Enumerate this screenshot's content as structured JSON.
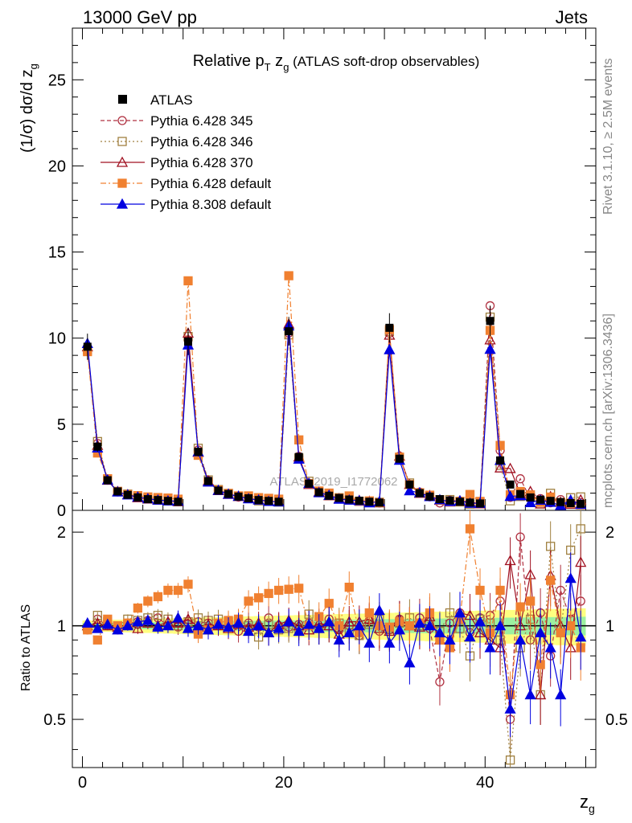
{
  "header": {
    "left": "13000 GeV pp",
    "right": "Jets"
  },
  "side_labels": {
    "rivet": "Rivet 3.1.10, ≥ 2.5M events",
    "mcplots": "mcplots.cern.ch [arXiv:1306.3436]"
  },
  "chart_data": {
    "type": "scatter",
    "title_main": "Relative p",
    "title_sub_T": "T",
    "title_mid": " z",
    "title_sub_g": "g",
    "title_tail": " (ATLAS soft-drop observables)",
    "watermark": "ATLAS_2019_I1772062",
    "xlabel": "z",
    "xlabel_sub": "g",
    "ylabel_main": "(1/σ) dσ/d z",
    "ylabel_sub": "g",
    "ylabel_ratio": "Ratio to ATLAS",
    "xlim": [
      -1,
      51
    ],
    "ylim_main": [
      0,
      28
    ],
    "ylim_ratio": [
      0.35,
      2.35
    ],
    "main_yticks": [
      "0",
      "5",
      "10",
      "15",
      "20",
      "25"
    ],
    "ratio_yticks": [
      "0.5",
      "1",
      "2"
    ],
    "xticks": [
      "0",
      "20",
      "40"
    ],
    "colors": {
      "atlas": "#000000",
      "p345": "#b03040",
      "p346": "#a08040",
      "p370": "#a01020",
      "p6def": "#f08030",
      "p8def": "#0000e0",
      "band_green": "#9cf0a0",
      "band_yellow": "#ffff80"
    },
    "legend": [
      {
        "key": "atlas",
        "label": "ATLAS"
      },
      {
        "key": "p345",
        "label": "Pythia 6.428 345"
      },
      {
        "key": "p346",
        "label": "Pythia 6.428 346"
      },
      {
        "key": "p370",
        "label": "Pythia 6.428 370"
      },
      {
        "key": "p6def",
        "label": "Pythia 6.428 default"
      },
      {
        "key": "p8def",
        "label": "Pythia 8.308 default"
      }
    ],
    "atlas_values": [
      9.5,
      3.7,
      1.75,
      1.1,
      0.9,
      0.75,
      0.65,
      0.6,
      0.55,
      0.5,
      9.8,
      3.4,
      1.7,
      1.15,
      0.95,
      0.8,
      0.7,
      0.6,
      0.55,
      0.5,
      10.4,
      3.1,
      1.55,
      1.05,
      0.85,
      0.72,
      0.63,
      0.56,
      0.5,
      0.45,
      10.6,
      3.0,
      1.5,
      1.0,
      0.8,
      0.65,
      0.57,
      0.5,
      0.45,
      0.4,
      11.0,
      2.9,
      1.5,
      0.95,
      0.75,
      0.62,
      0.55,
      0.48,
      0.42,
      0.38
    ],
    "ratios": {
      "p345": [
        0.97,
        1.05,
        1.0,
        0.97,
        1.02,
        1.03,
        1.04,
        1.06,
        1.0,
        0.99,
        1.01,
        1.03,
        1.02,
        1.0,
        1.01,
        0.96,
        1.02,
        0.99,
        1.06,
        1.0,
        0.99,
        1.01,
        1.02,
        0.98,
        1.05,
        0.97,
        1.0,
        0.93,
        1.04,
        0.96,
        0.97,
        1.05,
        1.0,
        1.06,
        0.98,
        0.66,
        1.02,
        1.1,
        0.95,
        1.06,
        1.08,
        1.2,
        0.5,
        1.93,
        0.9,
        1.1,
        0.8,
        1.3,
        1.05,
        1.2
      ],
      "p346": [
        0.98,
        1.08,
        1.03,
        1.0,
        1.05,
        1.04,
        1.06,
        1.08,
        1.05,
        1.0,
        1.03,
        1.06,
        1.04,
        1.05,
        1.03,
        1.04,
        1.0,
        0.92,
        1.01,
        0.97,
        0.98,
        0.98,
        1.09,
        0.98,
        1.0,
        1.02,
        0.95,
        0.93,
        1.01,
        1.05,
        0.98,
        1.02,
        1.06,
        1.0,
        1.03,
        0.96,
        1.1,
        0.98,
        0.8,
        1.05,
        1.02,
        0.9,
        0.37,
        0.85,
        1.05,
        0.6,
        1.8,
        0.95,
        1.75,
        2.05
      ],
      "p370": [
        1.0,
        1.02,
        1.0,
        0.99,
        1.01,
        0.98,
        1.02,
        1.0,
        1.03,
        1.02,
        1.05,
        0.99,
        1.01,
        1.0,
        0.98,
        1.01,
        0.99,
        1.02,
        0.95,
        1.01,
        1.04,
        1.0,
        0.97,
        1.02,
        1.0,
        0.94,
        1.03,
        1.03,
        1.05,
        0.98,
        0.96,
        1.05,
        1.0,
        0.99,
        1.07,
        0.9,
        0.86,
        1.1,
        1.08,
        0.95,
        0.9,
        0.85,
        1.62,
        1.0,
        1.46,
        0.6,
        1.45,
        1.0,
        0.85,
        1.6
      ],
      "p6def": [
        0.97,
        0.9,
        1.05,
        1.0,
        1.02,
        1.14,
        1.2,
        1.24,
        1.3,
        1.3,
        1.36,
        0.94,
        0.97,
        1.02,
        1.04,
        1.05,
        1.2,
        1.23,
        1.27,
        1.3,
        1.31,
        1.32,
        1.0,
        1.07,
        1.18,
        1.0,
        1.33,
        0.95,
        1.1,
        1.0,
        0.99,
        1.03,
        1.0,
        1.02,
        1.1,
        0.9,
        0.85,
        1.05,
        2.05,
        1.3,
        0.95,
        1.3,
        0.6,
        1.15,
        1.2,
        0.75,
        1.4,
        0.95,
        1.0,
        0.85
      ],
      "p8def": [
        1.02,
        0.98,
        1.01,
        0.97,
        1.0,
        1.03,
        1.04,
        0.99,
        1.0,
        1.06,
        0.98,
        1.0,
        0.97,
        1.01,
        0.99,
        1.02,
        0.96,
        1.0,
        0.95,
        0.98,
        1.03,
        0.96,
        1.01,
        0.98,
        1.03,
        0.9,
        0.95,
        1.0,
        0.88,
        1.12,
        0.88,
        0.97,
        0.76,
        1.02,
        1.0,
        0.95,
        0.9,
        1.1,
        0.92,
        1.03,
        0.85,
        1.0,
        0.54,
        0.9,
        0.6,
        0.95,
        0.85,
        0.6,
        1.42,
        0.92
      ]
    }
  }
}
